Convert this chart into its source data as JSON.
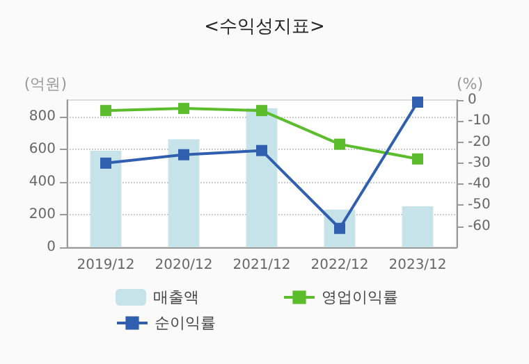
{
  "chart_data": {
    "type": "bar",
    "title": "<수익성지표>",
    "ylabel": "(억원)",
    "y2label": "(%)",
    "categories": [
      "2019/12",
      "2020/12",
      "2021/12",
      "2022/12",
      "2023/12"
    ],
    "series": [
      {
        "name": "매출액",
        "color": "#c5e3e8",
        "values": [
          590,
          660,
          850,
          230,
          250
        ]
      },
      {
        "name": "영업이익률",
        "type": "line",
        "axis": "y2",
        "color": "#5bbd2b",
        "values": [
          -5,
          -4,
          -5,
          -21,
          -28
        ]
      },
      {
        "name": "순이익률",
        "type": "line",
        "axis": "y2",
        "color": "#2f5fae",
        "values": [
          -30,
          -26,
          -24,
          -61,
          -1
        ]
      }
    ],
    "ylim": [
      0,
      900
    ],
    "yticks": [
      0,
      200,
      400,
      600,
      800
    ],
    "y2lim": [
      -70,
      0
    ],
    "y2ticks": [
      -60,
      -50,
      -40,
      -30,
      -20,
      -10,
      0
    ],
    "grid": "y",
    "legend": "bottom",
    "marker": "square"
  }
}
